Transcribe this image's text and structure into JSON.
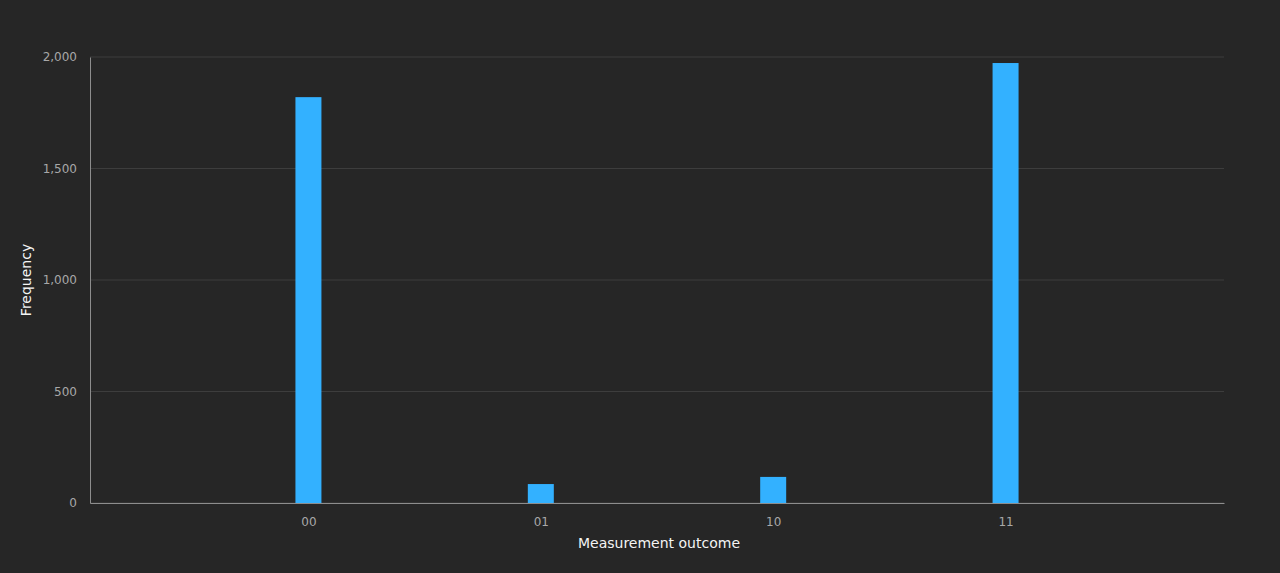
{
  "chart_data": {
    "type": "bar",
    "x_label": "Measurement outcome",
    "y_label": "Frequency",
    "categories": [
      "00",
      "01",
      "10",
      "11"
    ],
    "values": [
      1820,
      85,
      117,
      1973
    ],
    "color": "#33b1ff",
    "ylim": [
      0,
      2000
    ],
    "yticks": [
      0,
      500,
      {
        "value": 1000,
        "label": "1,000"
      },
      {
        "value": 1500,
        "label": "1,500"
      },
      {
        "value": 2000,
        "label": "2,000"
      }
    ],
    "grid": true
  }
}
